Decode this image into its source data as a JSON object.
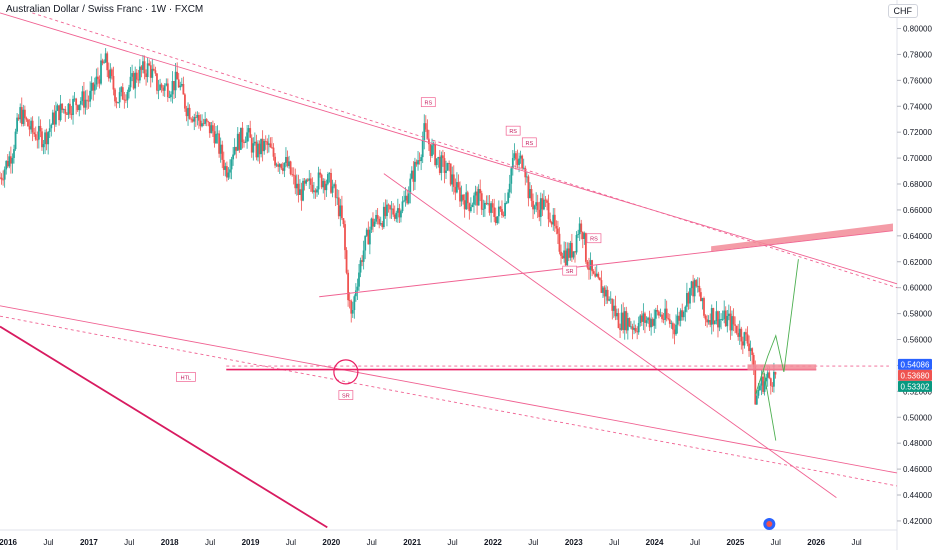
{
  "title": "Australian Dollar / Swiss Franc · 1W · FXCM",
  "currency": "CHF",
  "colors": {
    "up": "#26a69a",
    "down": "#ef5350",
    "line": "#f06292",
    "hl_line": "#e91e63",
    "zone": "#f28b98",
    "projection": "#4caf50",
    "price_blue": "#2962ff",
    "price_red": "#ef5350",
    "price_green": "#089981"
  },
  "chart_data": {
    "type": "candlestick",
    "y_ticks": [
      0.42,
      0.44,
      0.46,
      0.48,
      0.5,
      0.52,
      0.54,
      0.56,
      0.58,
      0.6,
      0.62,
      0.64,
      0.66,
      0.68,
      0.7,
      0.72,
      0.74,
      0.76,
      0.78,
      0.8
    ],
    "y_tick_labels": [
      "0.42000",
      "0.44000",
      "0.46000",
      "0.48000",
      "0.50000",
      "0.52000",
      "0.54000",
      "0.56000",
      "0.58000",
      "0.60000",
      "0.62000",
      "0.64000",
      "0.66000",
      "0.68000",
      "0.70000",
      "0.72000",
      "0.74000",
      "0.76000",
      "0.78000",
      "0.80000"
    ],
    "ylim": [
      0.413,
      0.822
    ],
    "xlim": [
      2015.9,
      2027.0
    ],
    "x_ticks": [
      {
        "x": 2016.0,
        "label": "2016"
      },
      {
        "x": 2016.5,
        "label": "Jul"
      },
      {
        "x": 2017.0,
        "label": "2017"
      },
      {
        "x": 2017.5,
        "label": "Jul"
      },
      {
        "x": 2018.0,
        "label": "2018"
      },
      {
        "x": 2018.5,
        "label": "Jul"
      },
      {
        "x": 2019.0,
        "label": "2019"
      },
      {
        "x": 2019.5,
        "label": "Jul"
      },
      {
        "x": 2020.0,
        "label": "2020"
      },
      {
        "x": 2020.5,
        "label": "Jul"
      },
      {
        "x": 2021.0,
        "label": "2021"
      },
      {
        "x": 2021.5,
        "label": "Jul"
      },
      {
        "x": 2022.0,
        "label": "2022"
      },
      {
        "x": 2022.5,
        "label": "Jul"
      },
      {
        "x": 2023.0,
        "label": "2023"
      },
      {
        "x": 2023.5,
        "label": "Jul"
      },
      {
        "x": 2024.0,
        "label": "2024"
      },
      {
        "x": 2024.5,
        "label": "Jul"
      },
      {
        "x": 2025.0,
        "label": "2025"
      },
      {
        "x": 2025.5,
        "label": "Jul"
      },
      {
        "x": 2026.0,
        "label": "2026"
      },
      {
        "x": 2026.5,
        "label": "Jul"
      }
    ],
    "price_path": [
      [
        2015.9,
        0.685
      ],
      [
        2016.05,
        0.705
      ],
      [
        2016.15,
        0.735
      ],
      [
        2016.3,
        0.72
      ],
      [
        2016.45,
        0.715
      ],
      [
        2016.6,
        0.735
      ],
      [
        2016.75,
        0.74
      ],
      [
        2016.9,
        0.745
      ],
      [
        2017.0,
        0.745
      ],
      [
        2017.1,
        0.76
      ],
      [
        2017.2,
        0.775
      ],
      [
        2017.35,
        0.745
      ],
      [
        2017.5,
        0.755
      ],
      [
        2017.6,
        0.765
      ],
      [
        2017.75,
        0.77
      ],
      [
        2017.85,
        0.755
      ],
      [
        2018.0,
        0.755
      ],
      [
        2018.1,
        0.76
      ],
      [
        2018.2,
        0.74
      ],
      [
        2018.35,
        0.73
      ],
      [
        2018.45,
        0.725
      ],
      [
        2018.55,
        0.72
      ],
      [
        2018.65,
        0.7
      ],
      [
        2018.7,
        0.69
      ],
      [
        2018.8,
        0.71
      ],
      [
        2018.95,
        0.72
      ],
      [
        2019.05,
        0.705
      ],
      [
        2019.2,
        0.71
      ],
      [
        2019.3,
        0.7
      ],
      [
        2019.45,
        0.695
      ],
      [
        2019.6,
        0.672
      ],
      [
        2019.75,
        0.68
      ],
      [
        2019.9,
        0.684
      ],
      [
        2020.0,
        0.68
      ],
      [
        2020.1,
        0.66
      ],
      [
        2020.15,
        0.645
      ],
      [
        2020.2,
        0.6
      ],
      [
        2020.25,
        0.575
      ],
      [
        2020.3,
        0.6
      ],
      [
        2020.38,
        0.625
      ],
      [
        2020.5,
        0.65
      ],
      [
        2020.65,
        0.655
      ],
      [
        2020.8,
        0.66
      ],
      [
        2020.9,
        0.665
      ],
      [
        2021.0,
        0.685
      ],
      [
        2021.1,
        0.705
      ],
      [
        2021.15,
        0.72
      ],
      [
        2021.25,
        0.705
      ],
      [
        2021.35,
        0.695
      ],
      [
        2021.45,
        0.69
      ],
      [
        2021.55,
        0.675
      ],
      [
        2021.7,
        0.665
      ],
      [
        2021.8,
        0.67
      ],
      [
        2021.95,
        0.66
      ],
      [
        2022.05,
        0.655
      ],
      [
        2022.15,
        0.665
      ],
      [
        2022.25,
        0.7
      ],
      [
        2022.3,
        0.695
      ],
      [
        2022.38,
        0.7
      ],
      [
        2022.45,
        0.67
      ],
      [
        2022.55,
        0.66
      ],
      [
        2022.6,
        0.665
      ],
      [
        2022.7,
        0.66
      ],
      [
        2022.8,
        0.635
      ],
      [
        2022.9,
        0.625
      ],
      [
        2023.0,
        0.63
      ],
      [
        2023.05,
        0.645
      ],
      [
        2023.1,
        0.65
      ],
      [
        2023.15,
        0.625
      ],
      [
        2023.25,
        0.605
      ],
      [
        2023.35,
        0.6
      ],
      [
        2023.45,
        0.59
      ],
      [
        2023.55,
        0.575
      ],
      [
        2023.65,
        0.575
      ],
      [
        2023.75,
        0.57
      ],
      [
        2023.85,
        0.575
      ],
      [
        2023.95,
        0.575
      ],
      [
        2024.05,
        0.58
      ],
      [
        2024.15,
        0.575
      ],
      [
        2024.25,
        0.57
      ],
      [
        2024.35,
        0.585
      ],
      [
        2024.45,
        0.6
      ],
      [
        2024.55,
        0.598
      ],
      [
        2024.62,
        0.575
      ],
      [
        2024.7,
        0.58
      ],
      [
        2024.8,
        0.576
      ],
      [
        2024.9,
        0.575
      ],
      [
        2025.0,
        0.57
      ],
      [
        2025.1,
        0.562
      ],
      [
        2025.2,
        0.555
      ],
      [
        2025.25,
        0.512
      ],
      [
        2025.3,
        0.525
      ],
      [
        2025.4,
        0.53
      ],
      [
        2025.5,
        0.532
      ]
    ],
    "lines": [
      {
        "name": "upper-channel",
        "x1": 2015.9,
        "y1": 0.812,
        "x2": 2027.0,
        "y2": 0.603,
        "dash": false
      },
      {
        "name": "upper-channel-dash",
        "x1": 2016.3,
        "y1": 0.812,
        "x2": 2027.0,
        "y2": 0.6,
        "dash": true
      },
      {
        "name": "mid-rising",
        "x1": 2019.85,
        "y1": 0.593,
        "x2": 2026.95,
        "y2": 0.644,
        "dash": false
      },
      {
        "name": "diag-down",
        "x1": 2020.65,
        "y1": 0.688,
        "x2": 2026.25,
        "y2": 0.438,
        "dash": false
      },
      {
        "name": "lower-long",
        "x1": 2015.9,
        "y1": 0.586,
        "x2": 2027.0,
        "y2": 0.457,
        "dash": false
      },
      {
        "name": "lower-long-dash",
        "x1": 2015.9,
        "y1": 0.578,
        "x2": 2027.0,
        "y2": 0.447,
        "dash": true
      },
      {
        "name": "steep-down",
        "x1": 2015.9,
        "y1": 0.57,
        "x2": 2019.95,
        "y2": 0.415,
        "dash": false
      },
      {
        "name": "htl-line",
        "x1": 2018.7,
        "y1": 0.5368,
        "x2": 2026.0,
        "y2": 0.5368,
        "dash": false
      },
      {
        "name": "htl-dash",
        "x1": 2018.7,
        "y1": 0.5395,
        "x2": 2026.9,
        "y2": 0.5395,
        "dash": true
      }
    ],
    "projection": [
      [
        2025.25,
        0.518
      ],
      [
        2025.4,
        0.547
      ],
      [
        2025.5,
        0.563
      ],
      [
        2025.6,
        0.535
      ],
      [
        2025.78,
        0.622
      ]
    ],
    "projection2": [
      [
        2025.35,
        0.536
      ],
      [
        2025.5,
        0.482
      ]
    ],
    "circle": {
      "x": 2020.18,
      "y": 0.535
    },
    "zones": [
      {
        "x1": 2024.7,
        "y1": 0.632,
        "x2": 2026.95,
        "y2": 0.648
      },
      {
        "x1": 2025.15,
        "y1": 0.5385,
        "x2": 2026.0,
        "y2": 0.5385
      }
    ],
    "labels": [
      {
        "text": "RS",
        "x": 2021.2,
        "y": 0.742
      },
      {
        "text": "RS",
        "x": 2022.25,
        "y": 0.72
      },
      {
        "text": "RS",
        "x": 2022.45,
        "y": 0.711
      },
      {
        "text": "RS",
        "x": 2023.25,
        "y": 0.637
      },
      {
        "text": "SR",
        "x": 2022.95,
        "y": 0.612
      },
      {
        "text": "HTL",
        "x": 2018.2,
        "y": 0.53
      },
      {
        "text": "SR",
        "x": 2020.18,
        "y": 0.516
      }
    ],
    "price_tags": [
      {
        "text": "0.54086",
        "value": 0.54086,
        "color": "#2962ff"
      },
      {
        "text": "0.53680",
        "value": 0.5368,
        "color": "#ef5350"
      },
      {
        "text": "0.53302",
        "value": 0.53302,
        "color": "#089981"
      }
    ]
  }
}
